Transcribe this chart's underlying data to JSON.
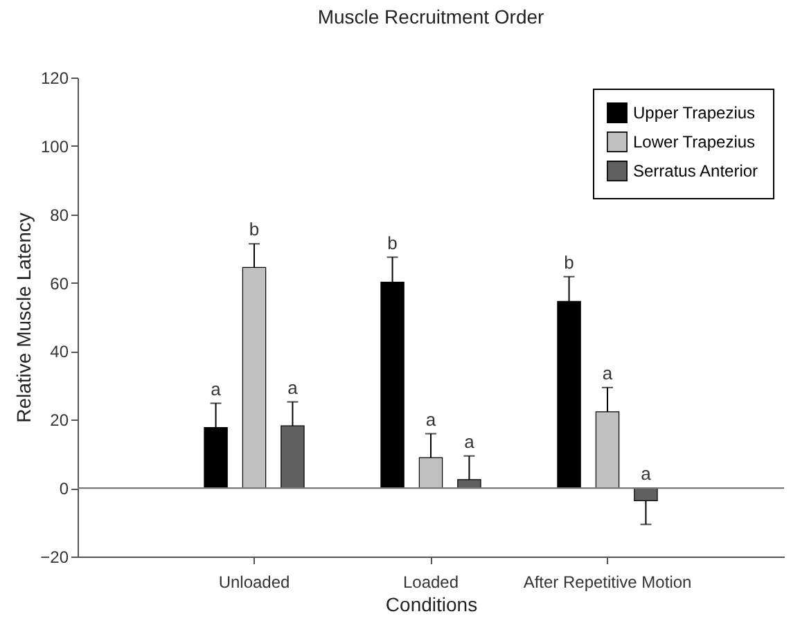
{
  "chart_data": {
    "type": "bar",
    "title": "Muscle Recruitment Order",
    "xlabel": "Conditions",
    "ylabel": "Relative Muscle Latency",
    "categories": [
      "Unloaded",
      "Loaded",
      "After Repetitive Motion"
    ],
    "series": [
      {
        "name": "Upper Trapezius",
        "color": "#000000",
        "values": [
          17.7,
          60.2,
          54.6
        ],
        "errors": [
          [
            17.7,
            24.8
          ],
          [
            60.2,
            67.5
          ],
          [
            54.6,
            61.8
          ]
        ],
        "value_labels": [
          "a",
          "b",
          "b"
        ]
      },
      {
        "name": "Lower Trapezius",
        "color": "#c0c0c0",
        "values": [
          64.5,
          8.9,
          22.3
        ],
        "errors": [
          [
            64.5,
            71.4
          ],
          [
            8.9,
            15.9
          ],
          [
            22.3,
            29.4
          ]
        ],
        "value_labels": [
          "b",
          "a",
          "a"
        ]
      },
      {
        "name": "Serratus Anterior",
        "color": "#606060",
        "values": [
          18.2,
          2.5,
          -3.7
        ],
        "errors": [
          [
            18.2,
            25.2
          ],
          [
            2.5,
            9.4
          ],
          [
            -10.6,
            -3.7
          ]
        ],
        "value_labels": [
          "a",
          "a",
          "a"
        ]
      }
    ],
    "ylim": [
      -20,
      120
    ],
    "yticks": [
      -20,
      0,
      20,
      40,
      60,
      80,
      100,
      120
    ],
    "ref_lines": [
      {
        "axis": "y",
        "value": 0
      }
    ],
    "grid": false,
    "legend": "top right"
  }
}
